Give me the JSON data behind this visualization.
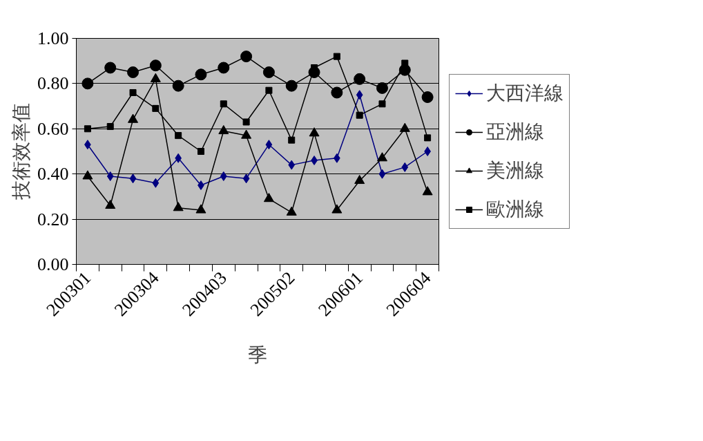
{
  "chart_data": {
    "type": "line",
    "xlabel": "季",
    "ylabel": "技術效率值",
    "categories": [
      "200301",
      null,
      null,
      "200304",
      null,
      null,
      "200403",
      null,
      null,
      "200502",
      null,
      null,
      "200601",
      null,
      null,
      "200604"
    ],
    "series": [
      {
        "name": "大西洋線",
        "color": "#000080",
        "marker": "diamond",
        "values": [
          0.53,
          0.39,
          0.38,
          0.36,
          0.47,
          0.35,
          0.39,
          0.38,
          0.53,
          0.44,
          0.46,
          0.47,
          0.75,
          0.4,
          0.43,
          0.5
        ]
      },
      {
        "name": "亞洲線",
        "color": "#000000",
        "marker": "circle",
        "values": [
          0.8,
          0.87,
          0.85,
          0.88,
          0.79,
          0.84,
          0.87,
          0.92,
          0.85,
          0.79,
          0.85,
          0.76,
          0.82,
          0.78,
          0.86,
          0.74
        ]
      },
      {
        "name": "美洲線",
        "color": "#000000",
        "marker": "triangle",
        "values": [
          0.39,
          0.26,
          0.64,
          0.82,
          0.25,
          0.24,
          0.59,
          0.57,
          0.29,
          0.23,
          0.58,
          0.24,
          0.37,
          0.47,
          0.6,
          0.32
        ]
      },
      {
        "name": "歐洲線",
        "color": "#000000",
        "marker": "square",
        "values": [
          0.6,
          0.61,
          0.76,
          0.69,
          0.57,
          0.5,
          0.71,
          0.63,
          0.77,
          0.55,
          0.87,
          0.92,
          0.66,
          0.71,
          0.89,
          0.56
        ]
      }
    ],
    "ylim": [
      0,
      1
    ],
    "yticks": [
      {
        "value": 0,
        "label": "0.00"
      },
      {
        "value": 0.2,
        "label": "0.20"
      },
      {
        "value": 0.4,
        "label": "0.40"
      },
      {
        "value": 0.6,
        "label": "0.60"
      },
      {
        "value": 0.8,
        "label": "0.80"
      },
      {
        "value": 1,
        "label": "1.00"
      }
    ],
    "grid": "y",
    "legend": "right",
    "line_style": "solid"
  }
}
